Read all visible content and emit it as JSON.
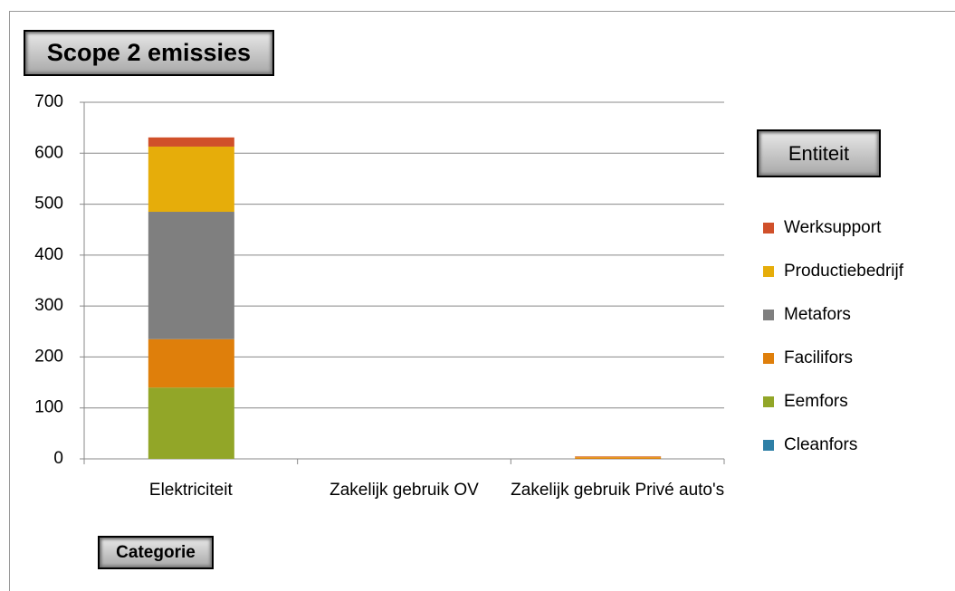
{
  "chart_data": {
    "type": "bar",
    "stacked": true,
    "title": "Scope 2 emissies",
    "legend_title": "Entiteit",
    "x_label": "Categorie",
    "categories": [
      "Elektriciteit",
      "Zakelijk gebruik OV",
      "Zakelijk gebruik Privé auto's"
    ],
    "series": [
      {
        "name": "Cleanfors",
        "color": "#2e7fa6",
        "values": [
          0,
          0,
          0
        ]
      },
      {
        "name": "Eemfors",
        "color": "#92a628",
        "values": [
          140,
          0,
          0
        ]
      },
      {
        "name": "Facilifors",
        "color": "#df7f0b",
        "values": [
          95,
          0,
          3
        ]
      },
      {
        "name": "Metafors",
        "color": "#7f7f7f",
        "values": [
          250,
          0,
          0
        ]
      },
      {
        "name": "Productiebedrijf",
        "color": "#e6ad0a",
        "values": [
          128,
          0,
          1
        ]
      },
      {
        "name": "Werksupport",
        "color": "#d0502a",
        "values": [
          18,
          0,
          1
        ]
      }
    ],
    "ylim": [
      0,
      700
    ],
    "yticks": [
      0,
      100,
      200,
      300,
      400,
      500,
      600,
      700
    ],
    "grid": true,
    "legend": "right"
  }
}
